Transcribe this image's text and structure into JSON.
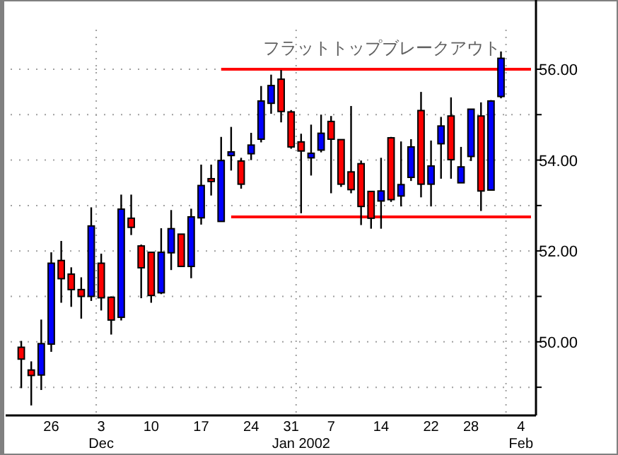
{
  "chart_data": {
    "type": "candlestick",
    "annotations": [
      "フラットトップブレークアウト",
      "Dec",
      "Jan 2002",
      "Feb"
    ],
    "categories": [
      null,
      null,
      null,
      "26",
      null,
      null,
      null,
      null,
      "3",
      null,
      null,
      null,
      null,
      "10",
      null,
      null,
      null,
      null,
      "17",
      null,
      null,
      null,
      null,
      "24",
      null,
      null,
      null,
      "31",
      null,
      null,
      null,
      "7",
      null,
      null,
      null,
      null,
      "14",
      null,
      null,
      null,
      null,
      "22",
      null,
      null,
      null,
      "28",
      null,
      null,
      null,
      null,
      "4",
      null
    ],
    "ohlc": [
      [
        49.88,
        50.02,
        48.98,
        49.62
      ],
      [
        49.38,
        49.57,
        48.6,
        49.26
      ],
      [
        49.27,
        50.49,
        48.94,
        49.96
      ],
      [
        49.95,
        51.97,
        49.78,
        51.73
      ],
      [
        51.79,
        52.22,
        50.86,
        51.39
      ],
      [
        51.49,
        51.64,
        50.77,
        51.15
      ],
      [
        51.15,
        51.42,
        50.51,
        51.0
      ],
      [
        51.0,
        52.96,
        50.9,
        52.55
      ],
      [
        51.73,
        51.94,
        50.69,
        50.97
      ],
      [
        50.98,
        51.0,
        50.16,
        50.48
      ],
      [
        50.54,
        53.24,
        50.47,
        52.92
      ],
      [
        52.72,
        53.24,
        52.35,
        52.52
      ],
      [
        52.11,
        52.14,
        50.96,
        51.63
      ],
      [
        51.97,
        51.97,
        50.86,
        51.02
      ],
      [
        51.08,
        52.5,
        51.05,
        51.97
      ],
      [
        51.96,
        52.9,
        51.58,
        52.49
      ],
      [
        52.37,
        52.37,
        51.66,
        51.66
      ],
      [
        51.66,
        52.93,
        51.4,
        52.75
      ],
      [
        52.73,
        53.9,
        52.58,
        53.44
      ],
      [
        53.59,
        53.9,
        53.22,
        53.53
      ],
      [
        52.65,
        54.51,
        52.65,
        53.99
      ],
      [
        54.1,
        54.73,
        53.77,
        54.18
      ],
      [
        53.98,
        54.05,
        53.37,
        53.47
      ],
      [
        54.14,
        54.6,
        54.0,
        54.33
      ],
      [
        54.46,
        55.63,
        54.39,
        55.3
      ],
      [
        55.25,
        55.88,
        55.02,
        55.64
      ],
      [
        55.78,
        55.98,
        54.83,
        55.07
      ],
      [
        55.06,
        55.1,
        54.25,
        54.29
      ],
      [
        54.4,
        54.58,
        52.83,
        54.2
      ],
      [
        54.05,
        54.78,
        53.66,
        54.15
      ],
      [
        54.22,
        55.0,
        54.17,
        54.59
      ],
      [
        54.85,
        54.97,
        53.27,
        54.46
      ],
      [
        54.45,
        54.45,
        53.41,
        53.47
      ],
      [
        53.74,
        55.19,
        53.27,
        53.35
      ],
      [
        53.92,
        53.99,
        52.57,
        52.98
      ],
      [
        53.31,
        53.31,
        52.49,
        52.72
      ],
      [
        53.1,
        54.05,
        52.49,
        53.32
      ],
      [
        54.49,
        54.51,
        53.08,
        53.13
      ],
      [
        53.21,
        54.41,
        52.98,
        53.46
      ],
      [
        53.62,
        54.46,
        53.54,
        54.29
      ],
      [
        55.09,
        55.5,
        53.18,
        53.47
      ],
      [
        53.47,
        54.43,
        52.98,
        53.87
      ],
      [
        54.36,
        54.95,
        53.59,
        54.75
      ],
      [
        54.97,
        55.38,
        53.59,
        54.01
      ],
      [
        53.5,
        54.29,
        53.5,
        53.85
      ],
      [
        54.08,
        55.12,
        53.98,
        55.12
      ],
      [
        54.97,
        55.27,
        52.88,
        53.32
      ],
      [
        53.34,
        55.32,
        53.34,
        55.3
      ],
      [
        55.4,
        56.39,
        55.36,
        56.24
      ],
      null,
      null,
      null
    ],
    "colors": [
      "#ff0000",
      "#ff0000",
      "#0000ff",
      "#0000ff",
      "#ff0000",
      "#ff0000",
      "#ff0000",
      "#0000ff",
      "#ff0000",
      "#ff0000",
      "#0000ff",
      "#ff0000",
      "#ff0000",
      "#ff0000",
      "#0000ff",
      "#0000ff",
      "#ff0000",
      "#0000ff",
      "#0000ff",
      "#ff0000",
      "#0000ff",
      "#0000ff",
      "#ff0000",
      "#0000ff",
      "#0000ff",
      "#0000ff",
      "#ff0000",
      "#ff0000",
      "#ff0000",
      "#0000ff",
      "#0000ff",
      "#ff0000",
      "#ff0000",
      "#ff0000",
      "#ff0000",
      "#ff0000",
      "#0000ff",
      "#ff0000",
      "#0000ff",
      "#0000ff",
      "#ff0000",
      "#0000ff",
      "#0000ff",
      "#ff0000",
      "#0000ff",
      "#0000ff",
      "#ff0000",
      "#0000ff",
      "#0000ff",
      null,
      null,
      null
    ],
    "series": [
      {
        "type": "line",
        "color": "#ff0000",
        "values": [
          null,
          null,
          null,
          null,
          null,
          null,
          null,
          null,
          null,
          null,
          null,
          null,
          null,
          null,
          null,
          null,
          null,
          null,
          null,
          null,
          56.0,
          56.0,
          56.0,
          56.0,
          56.0,
          56.0,
          56.0,
          56.0,
          56.0,
          56.0,
          56.0,
          56.0,
          56.0,
          56.0,
          56.0,
          56.0,
          56.0,
          56.0,
          56.0,
          56.0,
          56.0,
          56.0,
          56.0,
          56.0,
          56.0,
          56.0,
          56.0,
          56.0,
          56.0,
          56.0,
          56.0,
          56.0
        ]
      },
      {
        "type": "line",
        "color": "#ff0000",
        "values": [
          null,
          null,
          null,
          null,
          null,
          null,
          null,
          null,
          null,
          null,
          null,
          null,
          null,
          null,
          null,
          null,
          null,
          null,
          null,
          null,
          null,
          52.75,
          52.75,
          52.75,
          52.75,
          52.75,
          52.75,
          52.75,
          52.75,
          52.75,
          52.75,
          52.75,
          52.75,
          52.75,
          52.75,
          52.75,
          52.75,
          52.75,
          52.75,
          52.75,
          52.75,
          52.75,
          52.75,
          52.75,
          52.75,
          52.75,
          52.75,
          52.75,
          52.75,
          52.75,
          52.75,
          52.75
        ]
      }
    ],
    "ylim": [
      48.38,
      56.87
    ],
    "yticks": [
      {
        "value": 49,
        "label": null
      },
      {
        "value": 50,
        "label": "50.00"
      },
      {
        "value": 51,
        "label": null
      },
      {
        "value": 52,
        "label": "52.00"
      },
      {
        "value": 53,
        "label": null
      },
      {
        "value": 54,
        "label": "54.00"
      },
      {
        "value": 55,
        "label": null
      },
      {
        "value": 56,
        "label": "56.00"
      }
    ],
    "grid": "y"
  }
}
